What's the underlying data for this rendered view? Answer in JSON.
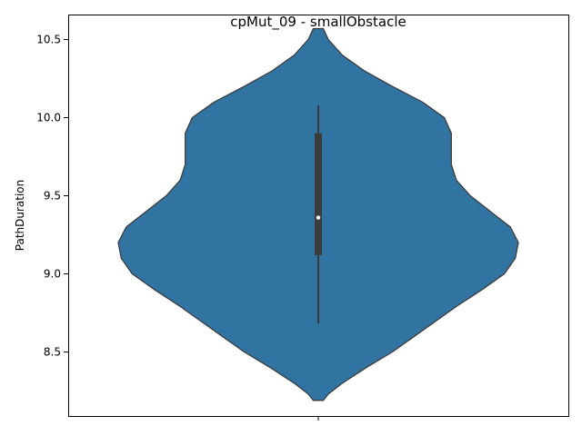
{
  "chart_data": {
    "type": "violin",
    "title": "cpMut_09 - smallObstacle",
    "xlabel": "",
    "ylabel": "PathDuration",
    "categories": [
      ""
    ],
    "ylim": [
      8.09,
      10.66
    ],
    "yticks": [
      8.5,
      9.0,
      9.5,
      10.0,
      10.5
    ],
    "ytick_labels": [
      "8.5",
      "9.0",
      "9.5",
      "10.0",
      "10.5"
    ],
    "grid": false,
    "color": "#3274a1",
    "outline_color": "#3c3c3c",
    "violin": {
      "y_min": 8.19,
      "y_max": 10.57,
      "profile": [
        [
          8.19,
          0.025
        ],
        [
          8.23,
          0.05
        ],
        [
          8.3,
          0.12
        ],
        [
          8.4,
          0.24
        ],
        [
          8.5,
          0.37
        ],
        [
          8.6,
          0.48
        ],
        [
          8.7,
          0.59
        ],
        [
          8.8,
          0.7
        ],
        [
          8.9,
          0.82
        ],
        [
          9.0,
          0.93
        ],
        [
          9.1,
          0.985
        ],
        [
          9.2,
          1.0
        ],
        [
          9.3,
          0.96
        ],
        [
          9.4,
          0.86
        ],
        [
          9.5,
          0.76
        ],
        [
          9.6,
          0.69
        ],
        [
          9.7,
          0.665
        ],
        [
          9.8,
          0.665
        ],
        [
          9.9,
          0.665
        ],
        [
          10.0,
          0.63
        ],
        [
          10.1,
          0.52
        ],
        [
          10.2,
          0.37
        ],
        [
          10.3,
          0.23
        ],
        [
          10.4,
          0.12
        ],
        [
          10.5,
          0.05
        ],
        [
          10.57,
          0.025
        ]
      ]
    },
    "box": {
      "whisker_low": 8.68,
      "q1": 9.12,
      "median": 9.36,
      "q3": 9.9,
      "whisker_high": 10.08
    }
  }
}
